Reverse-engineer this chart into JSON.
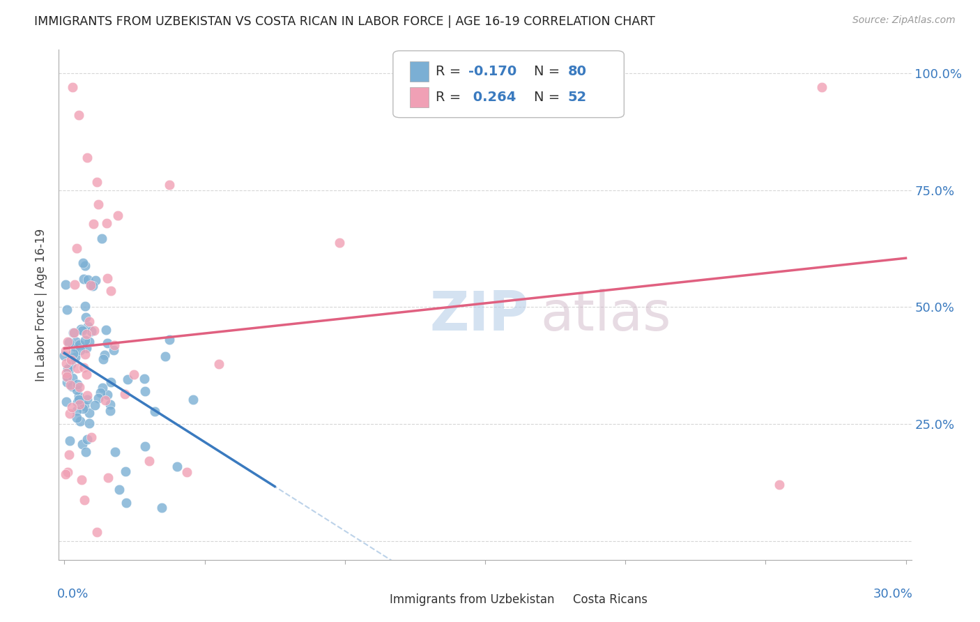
{
  "title": "IMMIGRANTS FROM UZBEKISTAN VS COSTA RICAN IN LABOR FORCE | AGE 16-19 CORRELATION CHART",
  "source": "Source: ZipAtlas.com",
  "blue_color": "#7bafd4",
  "pink_color": "#f0a0b5",
  "blue_line_color": "#3a7abf",
  "pink_line_color": "#e06080",
  "blue_dash_color": "#a0c0e0",
  "xmin": 0.0,
  "xmax": 0.3,
  "ymin": 0.0,
  "ymax": 1.05,
  "ytick_vals": [
    0.0,
    0.25,
    0.5,
    0.75,
    1.0
  ],
  "ytick_labels": [
    "",
    "25.0%",
    "50.0%",
    "75.0%",
    "100.0%"
  ],
  "background_color": "#ffffff",
  "grid_color": "#cccccc",
  "watermark_zip_color": "#b8cfe8",
  "watermark_atlas_color": "#d0b8c8"
}
